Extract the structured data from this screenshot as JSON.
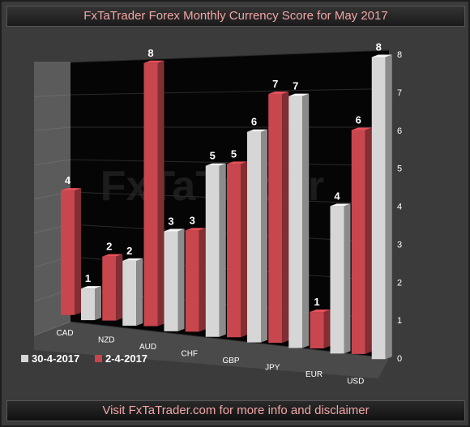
{
  "header": {
    "title": "FxTaTrader Forex Monthly Currency Score for May 2017"
  },
  "footer": {
    "text": "Visit FxTaTrader.com for more info and disclaimer"
  },
  "watermark": "FxTaTrader",
  "colors": {
    "series_red": "#c8464e",
    "series_grey": "#d6d6d6",
    "title_text": "#f2a6a6",
    "background": "#3b3b3b",
    "plot_back": "#000000"
  },
  "chart_data": {
    "type": "bar",
    "title": "FxTaTrader Forex Monthly Currency Score for May 2017",
    "categories": [
      "CAD",
      "NZD",
      "AUD",
      "CHF",
      "GBP",
      "JPY",
      "EUR",
      "USD"
    ],
    "series": [
      {
        "name": "2-4-2017",
        "color": "#c8464e",
        "values": [
          4,
          2,
          8,
          3,
          5,
          7,
          1,
          6
        ]
      },
      {
        "name": "30-4-2017",
        "color": "#d6d6d6",
        "values": [
          1,
          2,
          3,
          5,
          6,
          7,
          4,
          8
        ]
      }
    ],
    "y_ticks": [
      "0",
      "1",
      "2",
      "3",
      "4",
      "5",
      "6",
      "7",
      "8"
    ],
    "ylim": [
      0,
      8
    ],
    "legend_placement": "bottom-left",
    "grid": true
  }
}
